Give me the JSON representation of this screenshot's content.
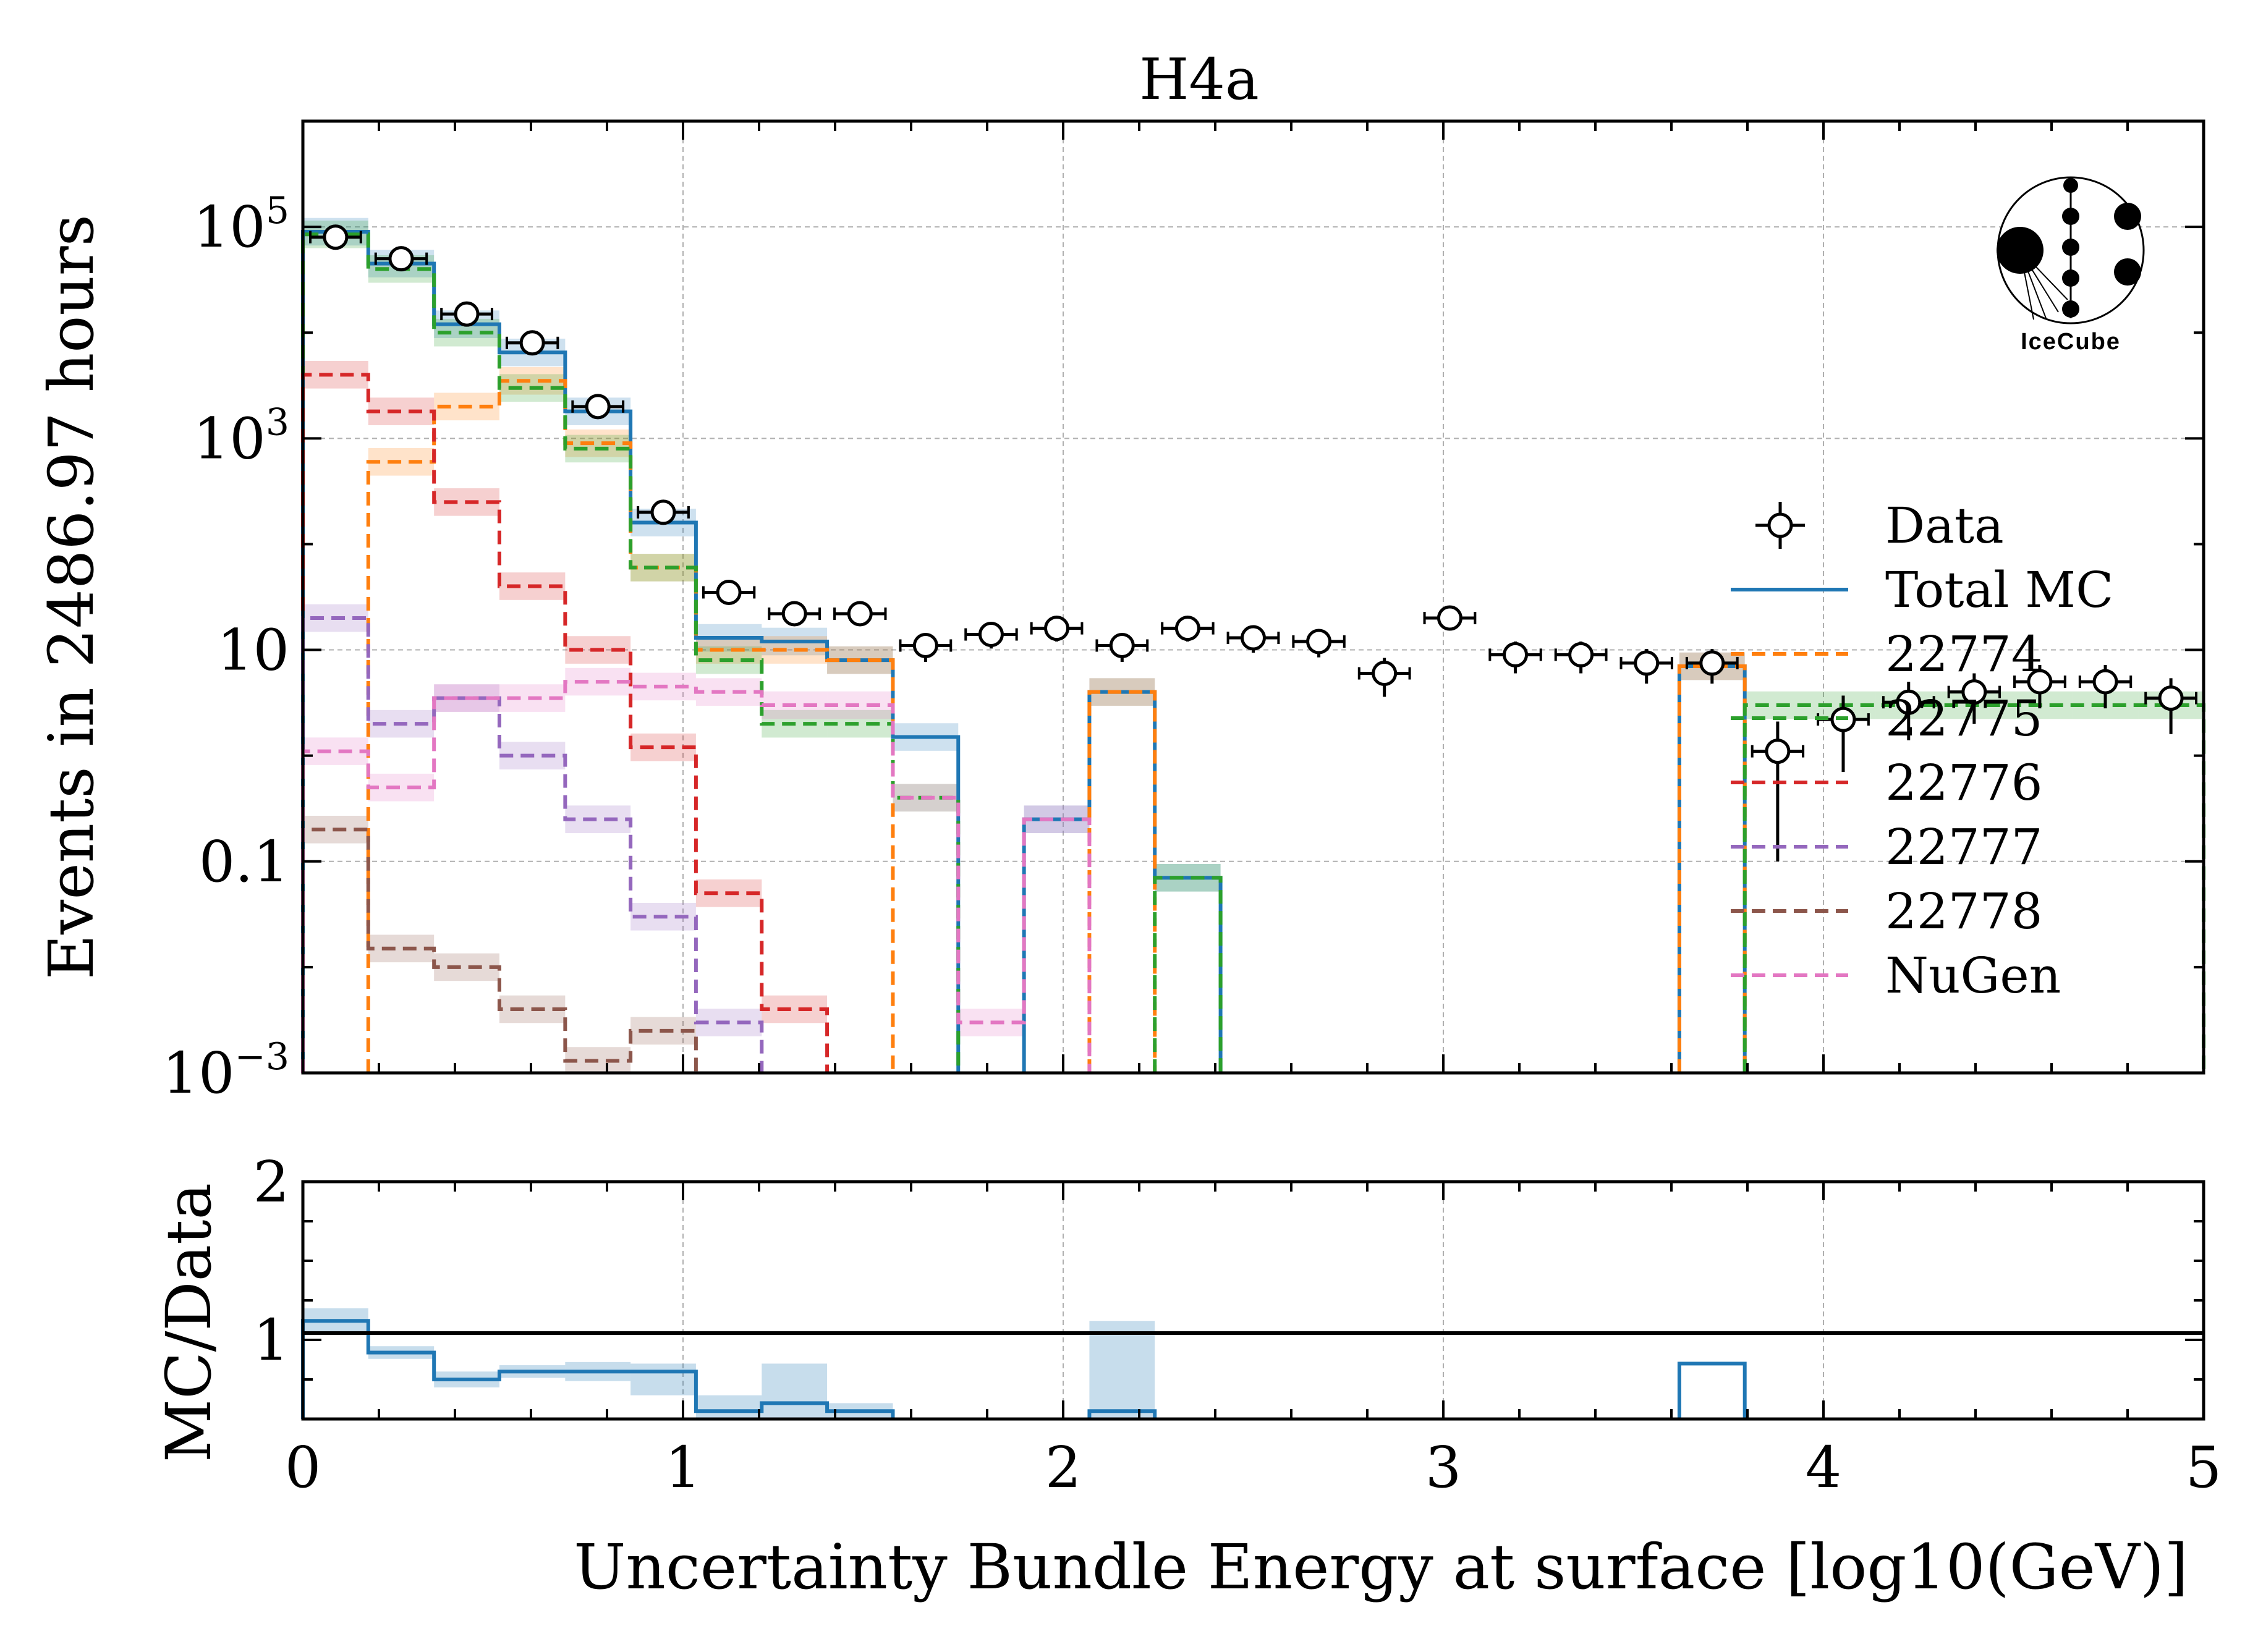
{
  "chart_data": [
    {
      "type": "step-histogram-with-data-points",
      "title": "H4a",
      "ylabel": "Events in 2486.97 hours",
      "xlabel": "Uncertainty Bundle Energy at surface [log10(GeV)]",
      "yscale": "log",
      "xlim": [
        0,
        5
      ],
      "ylim": [
        0.001,
        1000000
      ],
      "y_ticks": [
        {
          "value": 0.001,
          "base": "10",
          "exp": "−3"
        },
        {
          "value": 0.1,
          "base": "0.1",
          "exp": ""
        },
        {
          "value": 10,
          "base": "10",
          "exp": ""
        },
        {
          "value": 1000,
          "base": "10",
          "exp": "3"
        },
        {
          "value": 100000,
          "base": "10",
          "exp": "5"
        }
      ],
      "grid": true,
      "legend_position": "right",
      "logo_text": "IceCube",
      "bin_edges": [
        0,
        0.172,
        0.345,
        0.517,
        0.69,
        0.862,
        1.034,
        1.207,
        1.379,
        1.552,
        1.724,
        1.897,
        2.069,
        2.241,
        2.414,
        2.586,
        2.759,
        2.931,
        3.103,
        3.276,
        3.448,
        3.621,
        3.793,
        3.966,
        4.138,
        4.31,
        4.483,
        4.655,
        4.828,
        5.0
      ],
      "series": [
        {
          "name": "Data",
          "style": "points",
          "color": "#000000",
          "values": [
            80000,
            50000,
            15000,
            8000,
            2000,
            200,
            35,
            22,
            22,
            11,
            14,
            16,
            11,
            16,
            13,
            12,
            6,
            20,
            9,
            9,
            7.5,
            7.5,
            1.1,
            2.2,
            3.2,
            4,
            5,
            5,
            3.5
          ],
          "errors": [
            280,
            220,
            120,
            90,
            45,
            14,
            6,
            4.7,
            4.7,
            3.3,
            3.7,
            4,
            3.3,
            4,
            3.6,
            3.5,
            2.4,
            4.5,
            3,
            3,
            2.7,
            2.7,
            1,
            1.5,
            1.8,
            2,
            2.2,
            2.2,
            1.9
          ]
        },
        {
          "name": "Total MC",
          "style": "solid-step",
          "color": "#1f77b4",
          "values": [
            90000,
            45000,
            12000,
            6500,
            1800,
            160,
            13,
            12,
            8,
            1.5,
            null,
            0.25,
            4,
            0.07,
            null,
            null,
            null,
            null,
            null,
            null,
            null,
            7,
            null,
            null,
            null,
            null,
            null,
            null,
            null
          ]
        },
        {
          "name": "22774",
          "style": "dashed-step",
          "color": "#ff7f0e",
          "values": [
            null,
            600,
            2000,
            3500,
            900,
            60,
            10,
            10,
            8,
            null,
            null,
            null,
            4,
            null,
            null,
            null,
            null,
            null,
            null,
            null,
            null,
            7,
            null,
            null,
            null,
            null,
            null,
            null,
            null
          ]
        },
        {
          "name": "22775",
          "style": "dashed-step",
          "color": "#2ca02c",
          "values": [
            85000,
            40000,
            10000,
            3000,
            800,
            60,
            8,
            2,
            2,
            0.4,
            null,
            null,
            null,
            0.07,
            null,
            null,
            null,
            null,
            null,
            null,
            null,
            null,
            3,
            3,
            3,
            3,
            3,
            3,
            3
          ]
        },
        {
          "name": "22776",
          "style": "dashed-step",
          "color": "#d62728",
          "values": [
            4000,
            1800,
            250,
            40,
            10,
            1.2,
            0.05,
            0.004,
            null,
            null,
            null,
            null,
            null,
            null,
            null,
            null,
            null,
            null,
            null,
            null,
            null,
            null,
            null,
            null,
            null,
            null,
            null,
            null,
            null
          ]
        },
        {
          "name": "22777",
          "style": "dashed-step",
          "color": "#9467bd",
          "values": [
            20,
            2,
            3.5,
            1,
            0.25,
            0.03,
            0.003,
            null,
            null,
            null,
            null,
            null,
            null,
            null,
            null,
            null,
            null,
            null,
            null,
            null,
            null,
            null,
            null,
            null,
            null,
            null,
            null,
            null,
            null
          ]
        },
        {
          "name": "22778",
          "style": "dashed-step",
          "color": "#8c564b",
          "values": [
            0.2,
            0.015,
            0.01,
            0.004,
            0.0013,
            0.0025,
            null,
            null,
            null,
            null,
            null,
            null,
            null,
            null,
            null,
            null,
            null,
            null,
            null,
            null,
            null,
            null,
            null,
            null,
            null,
            null,
            null,
            null,
            null
          ]
        },
        {
          "name": "NuGen",
          "style": "dashed-step",
          "color": "#e377c2",
          "values": [
            1.1,
            0.5,
            3.5,
            3.5,
            5,
            4.5,
            4,
            3,
            3,
            0.4,
            0.003,
            0.25,
            null,
            null,
            null,
            null,
            null,
            null,
            null,
            null,
            null,
            null,
            null,
            null,
            null,
            null,
            null,
            null,
            null
          ]
        }
      ]
    },
    {
      "type": "step-ratio",
      "ylabel": "MC/Data",
      "xlabel": "Uncertainty Bundle Energy at surface [log10(GeV)]",
      "xlim": [
        0,
        5
      ],
      "ylim": [
        0.5,
        2
      ],
      "y_ticks": [
        "1",
        "2"
      ],
      "x_ticks": [
        "0",
        "1",
        "2",
        "3",
        "4",
        "5"
      ],
      "reference_line": 1,
      "series": [
        {
          "name": "Total MC / Data",
          "color": "#1f77b4",
          "values": [
            1.12,
            0.92,
            0.75,
            0.8,
            0.8,
            0.8,
            0.55,
            0.6,
            0.55,
            null,
            null,
            null,
            0.55,
            null,
            null,
            null,
            null,
            null,
            null,
            null,
            null,
            0.85,
            null,
            null,
            null,
            null,
            null,
            null,
            null
          ],
          "band": [
            [
              1.05,
              1.2
            ],
            [
              0.88,
              0.96
            ],
            [
              0.7,
              0.8
            ],
            [
              0.76,
              0.84
            ],
            [
              0.74,
              0.86
            ],
            [
              0.65,
              0.85
            ],
            [
              0.5,
              0.65
            ],
            [
              0.5,
              0.85
            ],
            [
              0.5,
              0.6
            ],
            null,
            null,
            null,
            [
              0.5,
              1.12
            ],
            null,
            null,
            null,
            null,
            null,
            null,
            null,
            null,
            null,
            null,
            null,
            null,
            null,
            null,
            null,
            null
          ]
        }
      ]
    }
  ]
}
